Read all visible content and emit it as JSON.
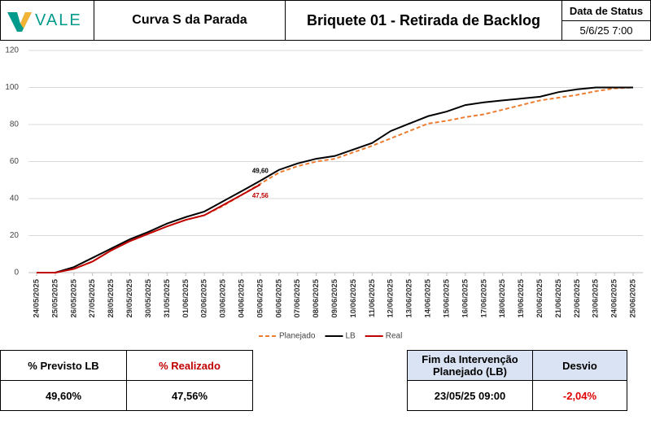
{
  "header": {
    "logo": "VALE",
    "title": "Curva S da Parada",
    "subtitle": "Briquete 01 - Retirada de Backlog",
    "status_label": "Data de Status",
    "status_date": "5/6/25 7:00"
  },
  "chart_data": {
    "type": "line",
    "categories": [
      "24/05/2025",
      "25/05/2025",
      "26/05/2025",
      "27/05/2025",
      "28/05/2025",
      "29/05/2025",
      "30/05/2025",
      "31/05/2025",
      "01/06/2025",
      "02/06/2025",
      "03/06/2025",
      "04/06/2025",
      "05/06/2025",
      "06/06/2025",
      "07/06/2025",
      "08/06/2025",
      "09/06/2025",
      "10/06/2025",
      "11/06/2025",
      "12/06/2025",
      "13/06/2025",
      "14/06/2025",
      "15/06/2025",
      "16/06/2025",
      "17/06/2025",
      "18/06/2025",
      "19/06/2025",
      "20/06/2025",
      "21/06/2025",
      "22/06/2025",
      "23/06/2025",
      "24/06/2025",
      "25/06/2025"
    ],
    "series": [
      {
        "name": "Planejado",
        "color": "#ed7d31",
        "dashed": true,
        "values": [
          0,
          0,
          2,
          6,
          12,
          17,
          21,
          25,
          28.5,
          31,
          36,
          42,
          48,
          54,
          57.5,
          60,
          61.5,
          65,
          68.5,
          72.5,
          76.5,
          80.5,
          82,
          84,
          85.5,
          88,
          90.5,
          93,
          94.5,
          96,
          98,
          99.5,
          100
        ]
      },
      {
        "name": "LB",
        "color": "#000000",
        "dashed": false,
        "values": [
          0,
          0,
          3,
          8,
          13,
          18,
          22,
          26.5,
          30,
          33,
          38.5,
          44,
          49.6,
          55.5,
          59,
          61.5,
          63,
          66.5,
          70,
          76.5,
          80.5,
          84.5,
          87,
          90.5,
          92,
          93,
          94,
          95,
          97.5,
          99,
          100,
          100,
          100
        ],
        "value_labels": [
          null,
          null,
          null,
          null,
          null,
          null,
          null,
          null,
          null,
          null,
          null,
          null,
          "49,60",
          null,
          null,
          null,
          null,
          null,
          null,
          null,
          null,
          null,
          null,
          null,
          null,
          null,
          null,
          null,
          null,
          null,
          null,
          null,
          null
        ]
      },
      {
        "name": "Real",
        "color": "#c00000",
        "dashed": false,
        "values": [
          0,
          0,
          2,
          6,
          12,
          17,
          21,
          25,
          28.5,
          31,
          36.5,
          42,
          47.56,
          null,
          null,
          null,
          null,
          null,
          null,
          null,
          null,
          null,
          null,
          null,
          null,
          null,
          null,
          null,
          null,
          null,
          null,
          null,
          null
        ],
        "value_labels": [
          null,
          null,
          null,
          null,
          null,
          null,
          null,
          null,
          null,
          null,
          null,
          null,
          "47,56",
          null,
          null,
          null,
          null,
          null,
          null,
          null,
          null,
          null,
          null,
          null,
          null,
          null,
          null,
          null,
          null,
          null,
          null,
          null,
          null
        ]
      }
    ],
    "ylim": [
      0,
      120
    ],
    "yticks": [
      0,
      20,
      40,
      60,
      80,
      100,
      120
    ],
    "grid": true,
    "legend": "bottom"
  },
  "summary": {
    "headers": [
      "% Previsto LB",
      "% Realizado"
    ],
    "values": [
      "49,60%",
      "47,56%"
    ]
  },
  "deadline": {
    "headers": [
      "Fim da Intervenção Planejado (LB)",
      "Desvio"
    ],
    "values": [
      "23/05/25 09:00",
      "-2,04%"
    ]
  }
}
